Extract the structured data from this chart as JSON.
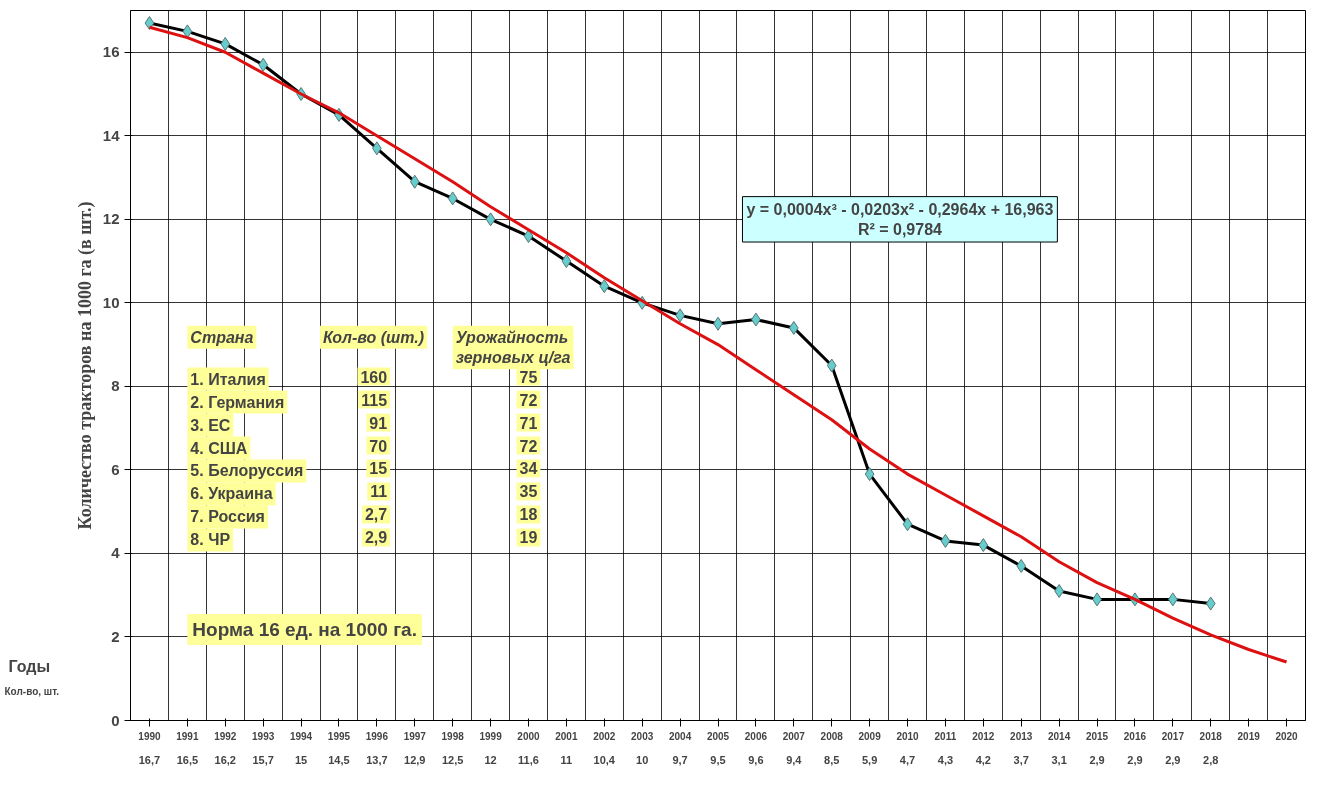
{
  "chart_data": {
    "type": "line",
    "ylabel": "Количество тракторов на 1000 га (в шт.)",
    "categories": [
      "1990",
      "1991",
      "1992",
      "1993",
      "1994",
      "1995",
      "1996",
      "1997",
      "1998",
      "1999",
      "2000",
      "2001",
      "2002",
      "2003",
      "2004",
      "2005",
      "2006",
      "2007",
      "2008",
      "2009",
      "2010",
      "2011",
      "2012",
      "2013",
      "2014",
      "2015",
      "2016",
      "2017",
      "2018",
      "2019",
      "2020"
    ],
    "series": [
      {
        "color": "#000000",
        "marker": "diamond",
        "values": [
          16.7,
          16.5,
          16.2,
          15.7,
          15,
          14.5,
          13.7,
          12.9,
          12.5,
          12,
          11.6,
          11,
          10.4,
          10,
          9.7,
          9.5,
          9.6,
          9.4,
          8.5,
          5.9,
          4.7,
          4.3,
          4.2,
          3.7,
          3.1,
          2.9,
          2.9,
          2.9,
          2.8,
          null,
          null
        ],
        "value_labels": [
          "16,7",
          "16,5",
          "16,2",
          "15,7",
          "15",
          "14,5",
          "13,7",
          "12,9",
          "12,5",
          "12",
          "11,6",
          "11",
          "10,4",
          "10",
          "9,7",
          "9,5",
          "9,6",
          "9,4",
          "8,5",
          "5,9",
          "4,7",
          "4,3",
          "4,2",
          "3,7",
          "3,1",
          "2,9",
          "2,9",
          "2,9",
          "2,8",
          null,
          null
        ]
      },
      {
        "color": "#dd1111",
        "marker": "none",
        "values": [
          16.6,
          16.35,
          16.0,
          15.5,
          15.0,
          14.55,
          14.0,
          13.45,
          12.9,
          12.3,
          11.75,
          11.2,
          10.6,
          10.05,
          9.5,
          9.0,
          8.4,
          7.8,
          7.2,
          6.5,
          5.9,
          5.4,
          4.9,
          4.4,
          3.8,
          3.3,
          2.9,
          2.45,
          2.05,
          1.7,
          1.4
        ]
      }
    ],
    "ylim": [
      0,
      17
    ],
    "yticks": [
      0,
      2,
      4,
      6,
      8,
      10,
      12,
      14,
      16
    ],
    "grid": true,
    "annotations": [
      "y = 0,0004x³ - 0,0203x² - 0,2964x + 16,963",
      "R² = 0,9784",
      "Страна",
      "Кол-во (шт.)",
      "Урожайность\nзерновых ц/га",
      "1. Италия",
      "160",
      "75",
      "2. Германия",
      "115",
      "72",
      "3. ЕС",
      "91",
      "71",
      "4. США",
      "70",
      "72",
      "5. Белоруссия",
      "15",
      "34",
      "6. Украина",
      "11",
      "35",
      "7. Россия",
      "2,7",
      "18",
      "8. ЧР",
      "2,9",
      "19",
      "Норма 16 ед. на 1000 га.",
      "Годы",
      "Кол-во, шт."
    ]
  }
}
